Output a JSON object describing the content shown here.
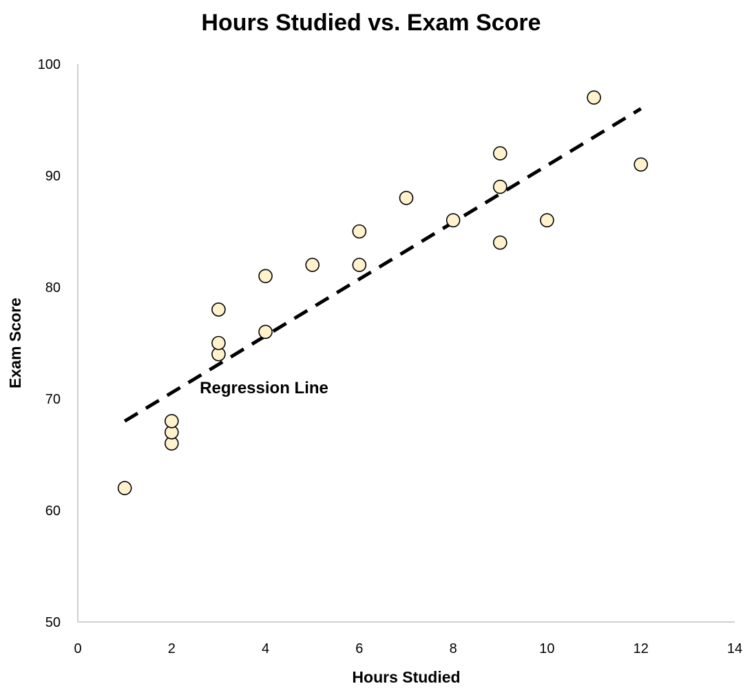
{
  "chart_data": {
    "type": "scatter",
    "title": "Hours Studied vs. Exam Score",
    "xlabel": "Hours Studied",
    "ylabel": "Exam Score",
    "xlim": [
      0,
      14
    ],
    "ylim": [
      50,
      100
    ],
    "x_ticks": [
      0,
      2,
      4,
      6,
      8,
      10,
      12,
      14
    ],
    "y_ticks": [
      50,
      60,
      70,
      80,
      90,
      100
    ],
    "grid": false,
    "legend": "none",
    "series": [
      {
        "x": [
          1,
          2,
          2,
          2,
          3,
          3,
          3,
          4,
          4,
          5,
          6,
          6,
          7,
          8,
          9,
          9,
          9,
          10,
          11,
          12
        ],
        "y": [
          62,
          66,
          67,
          68,
          74,
          75,
          78,
          76,
          81,
          82,
          82,
          85,
          88,
          86,
          84,
          89,
          92,
          86,
          97,
          91
        ]
      }
    ],
    "regression_line": {
      "x": [
        1,
        12
      ],
      "y": [
        68,
        96
      ],
      "style": "dashed",
      "color": "#000000"
    },
    "annotations": [
      {
        "text": "Regression Line",
        "x": 2.6,
        "y": 70.5
      }
    ],
    "marker_fill": "#FFF2CC",
    "marker_stroke": "#000000",
    "axis_color": "#BFBFBF"
  }
}
